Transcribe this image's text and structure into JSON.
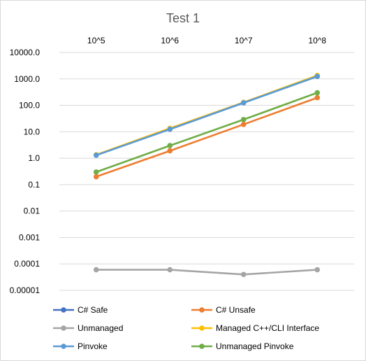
{
  "chart_data": {
    "type": "line",
    "title": "Test 1",
    "xlabel": "",
    "ylabel": "",
    "y_scale": "log",
    "ylim": [
      1e-05,
      10000
    ],
    "y_ticks": [
      "10000.0",
      "1000.0",
      "100.0",
      "10.0",
      "1.0",
      "0.1",
      "0.01",
      "0.001",
      "0.0001",
      "0.00001"
    ],
    "categories": [
      "10^5",
      "10^6",
      "10^7",
      "10^8"
    ],
    "x_axis_position": "top",
    "grid": true,
    "legend_position": "bottom",
    "series": [
      {
        "name": "C# Safe",
        "color": "#4472c4",
        "values": [
          1.3,
          12.5,
          125,
          1250
        ]
      },
      {
        "name": "C# Unsafe",
        "color": "#ed7d31",
        "values": [
          0.2,
          1.9,
          19,
          195
        ]
      },
      {
        "name": "Unmanaged",
        "color": "#a5a5a5",
        "values": [
          6e-05,
          6e-05,
          4e-05,
          6e-05
        ]
      },
      {
        "name": "Managed C++/CLI Interface",
        "color": "#ffc000",
        "values": [
          1.35,
          13.5,
          130,
          1350
        ]
      },
      {
        "name": "Pinvoke",
        "color": "#5b9bd5",
        "values": [
          1.3,
          12.5,
          125,
          1250
        ]
      },
      {
        "name": "Unmanaged Pinvoke",
        "color": "#70ad47",
        "values": [
          0.3,
          3.0,
          29,
          300
        ]
      }
    ]
  }
}
